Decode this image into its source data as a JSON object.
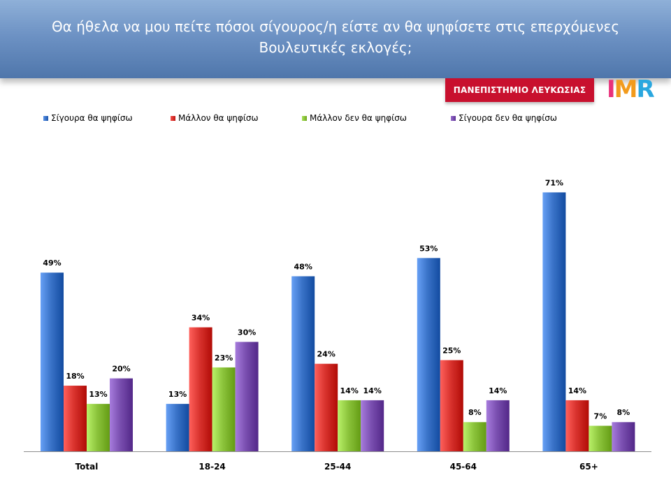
{
  "title": "Θα ήθελα να μου πείτε πόσοι σίγουρος/η είστε αν θα ψηφίσετε στις επερχόμενες Βουλευτικές εκλογές;",
  "logos": {
    "university": "ΠΑΝΕΠΙΣΤΗΜΙΟ ΛΕΥΚΩΣΙΑΣ",
    "imr": "IMR"
  },
  "chart_data": {
    "type": "bar",
    "categories": [
      "Total",
      "18-24",
      "25-44",
      "45-64",
      "65+"
    ],
    "series": [
      {
        "name": "Σίγουρα θα ψηφίσω",
        "color": "#3a73c8",
        "values": [
          49,
          13,
          48,
          53,
          71
        ]
      },
      {
        "name": "Μάλλον θα ψηφίσω",
        "color": "#d9332e",
        "values": [
          18,
          34,
          24,
          25,
          14
        ]
      },
      {
        "name": "Μάλλον δεν θα ψηφίσω",
        "color": "#8cc43c",
        "values": [
          13,
          23,
          14,
          8,
          7
        ]
      },
      {
        "name": "Σίγουρα δεν θα ψηφίσω",
        "color": "#7a4fb0",
        "values": [
          20,
          30,
          14,
          14,
          8
        ]
      }
    ],
    "value_suffix": "%",
    "ylim": [
      0,
      75
    ],
    "legend_position": "top",
    "grid": false
  }
}
